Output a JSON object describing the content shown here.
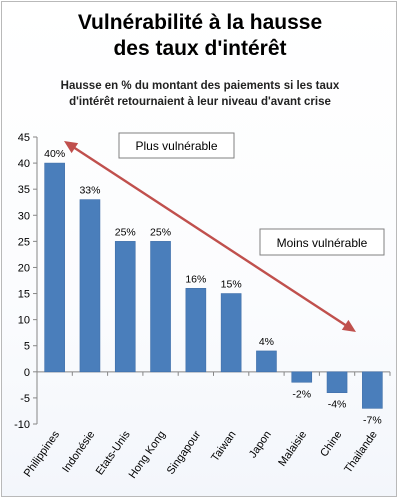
{
  "chart_data": {
    "type": "bar",
    "title_lines": [
      "Vulnérabilité à la hausse",
      "des taux d'intérêt"
    ],
    "subtitle_lines": [
      "Hausse en % du montant des paiements si les taux",
      "d'intérêt retournaient à leur niveau d'avant crise"
    ],
    "categories": [
      "Philippines",
      "Indonésie",
      "Etats-Unis",
      "Hong Kong",
      "Singapour",
      "Taiwan",
      "Japon",
      "Malaisie",
      "Chine",
      "Thailande"
    ],
    "values": [
      40,
      33,
      25,
      25,
      16,
      15,
      4,
      -2,
      -4,
      -7
    ],
    "data_labels": [
      "40%",
      "33%",
      "25%",
      "25%",
      "16%",
      "15%",
      "4%",
      "-2%",
      "-4%",
      "-7%"
    ],
    "ylim": [
      -10,
      45
    ],
    "yticks": [
      -10,
      -5,
      0,
      5,
      10,
      15,
      20,
      25,
      30,
      35,
      40,
      45
    ],
    "grid": false,
    "annotations": {
      "more_vulnerable": "Plus vulnérable",
      "less_vulnerable": "Moins vulnérable"
    },
    "colors": {
      "bar": "#4a7ebb",
      "arrow": "#c0504d",
      "axis": "#868686"
    }
  }
}
